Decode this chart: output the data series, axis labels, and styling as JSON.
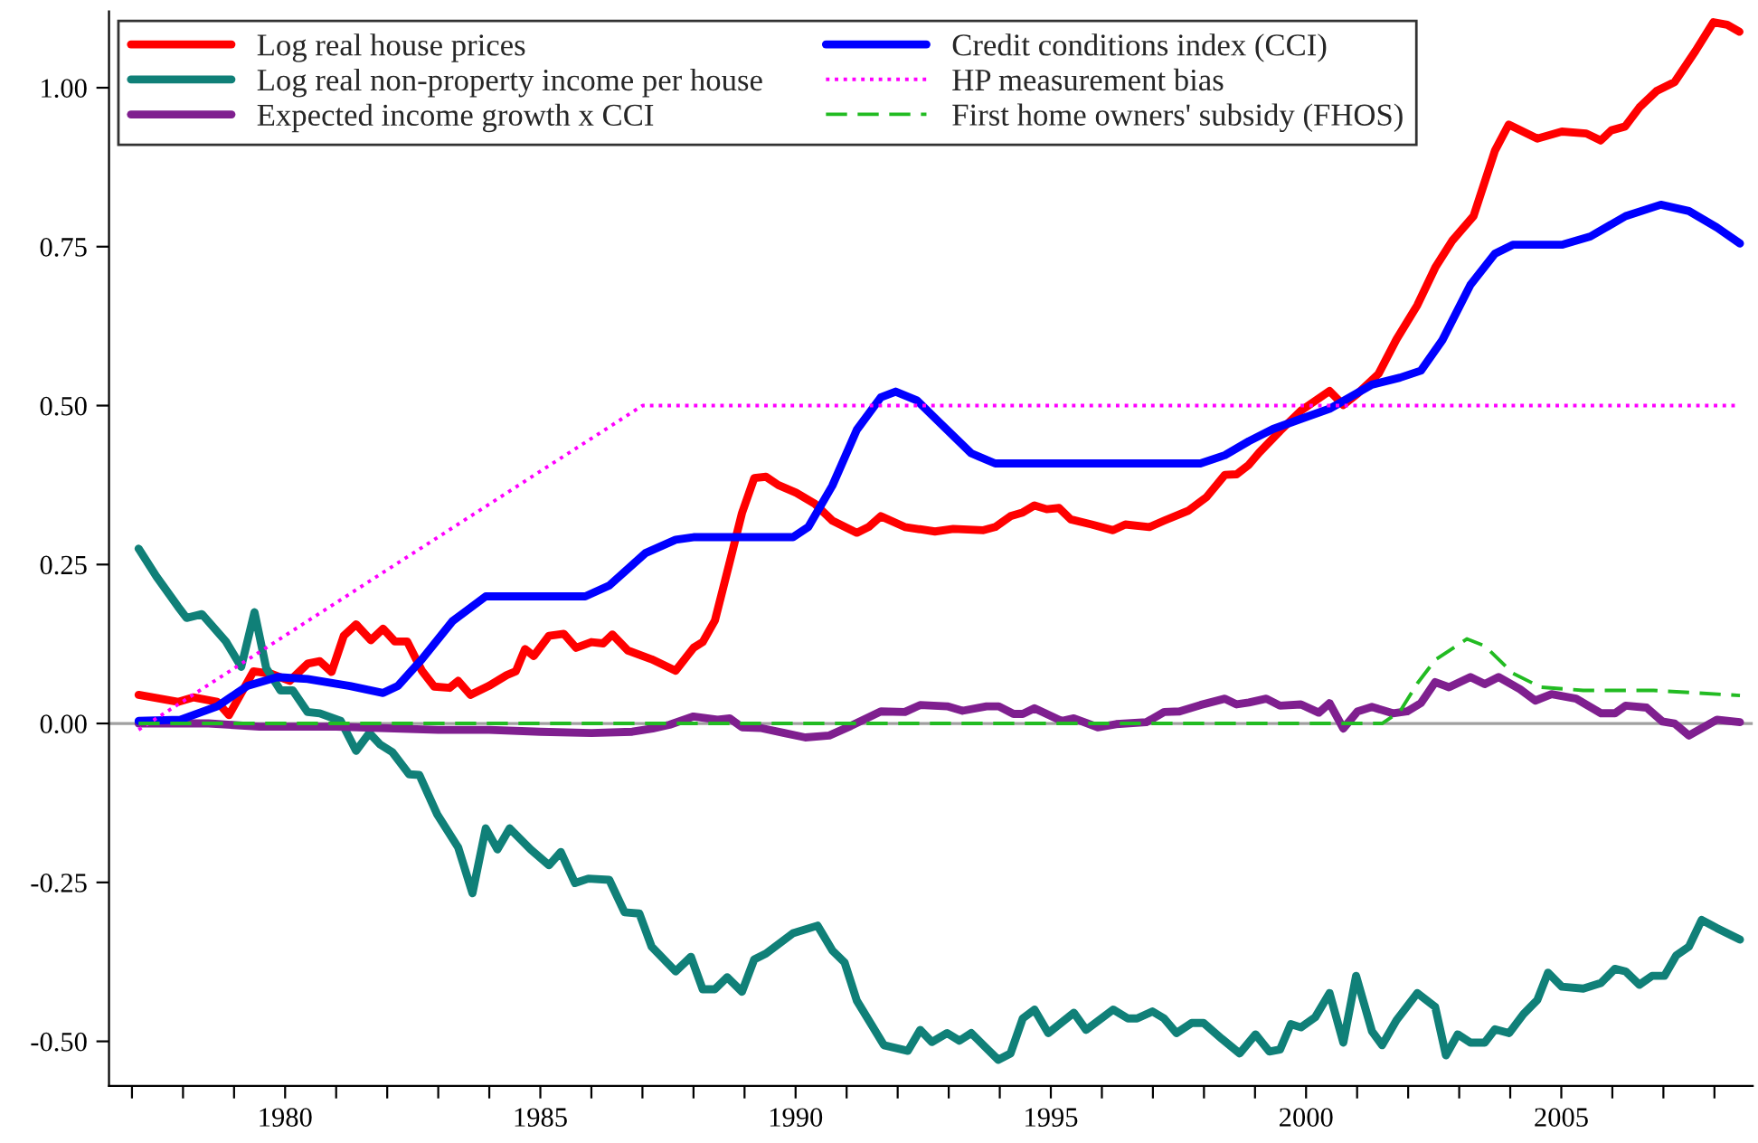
{
  "chart_data": {
    "type": "line",
    "legend": "top left",
    "grid": false,
    "marker": "none",
    "xlim": [
      1976.55,
      2008.75
    ],
    "ylim": [
      -0.57,
      1.12
    ],
    "xticks": [
      {
        "value": 1977,
        "label": null
      },
      {
        "value": 1978,
        "label": null
      },
      {
        "value": 1979,
        "label": null
      },
      1980,
      {
        "value": 1981,
        "label": null
      },
      {
        "value": 1982,
        "label": null
      },
      {
        "value": 1983,
        "label": null
      },
      {
        "value": 1984,
        "label": null
      },
      1985,
      {
        "value": 1986,
        "label": null
      },
      {
        "value": 1987,
        "label": null
      },
      {
        "value": 1988,
        "label": null
      },
      {
        "value": 1989,
        "label": null
      },
      1990,
      {
        "value": 1991,
        "label": null
      },
      {
        "value": 1992,
        "label": null
      },
      {
        "value": 1993,
        "label": null
      },
      {
        "value": 1994,
        "label": null
      },
      1995,
      {
        "value": 1996,
        "label": null
      },
      {
        "value": 1997,
        "label": null
      },
      {
        "value": 1998,
        "label": null
      },
      {
        "value": 1999,
        "label": null
      },
      2000,
      {
        "value": 2001,
        "label": null
      },
      {
        "value": 2002,
        "label": null
      },
      {
        "value": 2003,
        "label": null
      },
      {
        "value": 2004,
        "label": null
      },
      2005,
      {
        "value": 2006,
        "label": null
      },
      {
        "value": 2007,
        "label": null
      },
      {
        "value": 2008,
        "label": null
      }
    ],
    "yticks": [
      {
        "value": -0.5,
        "label": "-0.50"
      },
      {
        "value": -0.25,
        "label": "-0.25"
      },
      {
        "value": 0,
        "label": "0.00"
      },
      {
        "value": 0.25,
        "label": "0.25"
      },
      {
        "value": 0.5,
        "label": "0.50"
      },
      {
        "value": 0.75,
        "label": "0.75"
      },
      {
        "value": 1.0,
        "label": "1.00"
      }
    ],
    "ref_lines": [
      {
        "axis": "y",
        "value": 0,
        "label": null,
        "color": "#a0a0a0",
        "line_style": "solid"
      }
    ],
    "series": [
      {
        "name": "Log real house prices",
        "color": "#ff0000",
        "line_style": "solid",
        "x": [
          1977.13,
          1977.9,
          1978.2,
          1978.67,
          1978.9,
          1979.38,
          1979.73,
          1980.09,
          1980.44,
          1980.68,
          1980.91,
          1981.15,
          1981.39,
          1981.68,
          1981.92,
          1982.15,
          1982.39,
          1982.68,
          1982.92,
          1983.22,
          1983.39,
          1983.63,
          1983.99,
          1984.34,
          1984.52,
          1984.7,
          1984.87,
          1985.17,
          1985.46,
          1985.7,
          1986.0,
          1986.23,
          1986.41,
          1986.71,
          1987.18,
          1987.65,
          1988.0,
          1988.18,
          1988.42,
          1988.71,
          1988.95,
          1989.19,
          1989.42,
          1989.66,
          1990.01,
          1990.37,
          1990.72,
          1991.2,
          1991.43,
          1991.67,
          1992.14,
          1992.73,
          1993.09,
          1993.68,
          1993.91,
          1994.21,
          1994.45,
          1994.68,
          1994.92,
          1995.16,
          1995.39,
          1995.8,
          1996.22,
          1996.46,
          1996.93,
          1997.22,
          1997.7,
          1998.05,
          1998.41,
          1998.64,
          1998.88,
          1999.08,
          1999.49,
          1999.9,
          2000.46,
          2000.73,
          2001.01,
          2001.42,
          2001.77,
          2002.18,
          2002.53,
          2002.87,
          2003.28,
          2003.7,
          2003.97,
          2004.53,
          2005.01,
          2005.49,
          2005.77,
          2005.98,
          2006.25,
          2006.53,
          2006.87,
          2007.22,
          2007.63,
          2007.98,
          2008.25,
          2008.49
        ],
        "values": [
          0.045,
          0.034,
          0.041,
          0.034,
          0.013,
          0.082,
          0.078,
          0.067,
          0.094,
          0.098,
          0.081,
          0.138,
          0.156,
          0.131,
          0.149,
          0.129,
          0.129,
          0.083,
          0.058,
          0.056,
          0.067,
          0.045,
          0.059,
          0.076,
          0.082,
          0.117,
          0.106,
          0.138,
          0.141,
          0.119,
          0.128,
          0.126,
          0.14,
          0.115,
          0.101,
          0.083,
          0.119,
          0.128,
          0.162,
          0.254,
          0.331,
          0.386,
          0.388,
          0.375,
          0.363,
          0.346,
          0.319,
          0.3,
          0.309,
          0.326,
          0.309,
          0.302,
          0.306,
          0.304,
          0.309,
          0.326,
          0.332,
          0.343,
          0.337,
          0.339,
          0.321,
          0.313,
          0.304,
          0.313,
          0.309,
          0.319,
          0.335,
          0.356,
          0.391,
          0.392,
          0.407,
          0.426,
          0.46,
          0.492,
          0.523,
          0.501,
          0.519,
          0.55,
          0.604,
          0.658,
          0.717,
          0.76,
          0.798,
          0.901,
          0.942,
          0.92,
          0.931,
          0.928,
          0.917,
          0.933,
          0.939,
          0.969,
          0.995,
          1.009,
          1.058,
          1.103,
          1.099,
          1.088
        ]
      },
      {
        "name": "Log real non-property income per house",
        "color": "#108078",
        "line_style": "solid",
        "x": [
          1977.13,
          1977.48,
          1977.9,
          1978.07,
          1978.37,
          1978.84,
          1979.14,
          1979.4,
          1979.63,
          1979.91,
          1980.15,
          1980.44,
          1980.68,
          1981.09,
          1981.39,
          1981.65,
          1981.86,
          1982.1,
          1982.43,
          1982.63,
          1982.98,
          1983.39,
          1983.67,
          1983.93,
          1984.16,
          1984.4,
          1984.81,
          1985.17,
          1985.4,
          1985.68,
          1985.94,
          1986.35,
          1986.65,
          1986.94,
          1987.18,
          1987.65,
          1987.95,
          1988.18,
          1988.42,
          1988.66,
          1988.95,
          1989.19,
          1989.42,
          1989.95,
          1990.43,
          1990.72,
          1990.96,
          1991.2,
          1991.73,
          1992.2,
          1992.44,
          1992.67,
          1992.97,
          1993.21,
          1993.44,
          1993.68,
          1993.97,
          1994.21,
          1994.45,
          1994.68,
          1994.95,
          1995.45,
          1995.69,
          1996.22,
          1996.51,
          1996.69,
          1996.99,
          1997.22,
          1997.46,
          1997.76,
          1997.99,
          1998.35,
          1998.7,
          1999.01,
          1999.28,
          1999.49,
          1999.7,
          1999.9,
          2000.18,
          2000.46,
          2000.73,
          2000.98,
          2001.29,
          2001.49,
          2001.77,
          2002.18,
          2002.53,
          2002.74,
          2002.97,
          2003.22,
          2003.5,
          2003.7,
          2003.98,
          2004.26,
          2004.53,
          2004.74,
          2005.01,
          2005.43,
          2005.78,
          2006.05,
          2006.26,
          2006.53,
          2006.78,
          2007.02,
          2007.25,
          2007.5,
          2007.75,
          2008.05,
          2008.5
        ],
        "values": [
          0.275,
          0.231,
          0.184,
          0.166,
          0.172,
          0.129,
          0.089,
          0.175,
          0.087,
          0.052,
          0.052,
          0.018,
          0.016,
          0.004,
          -0.043,
          -0.015,
          -0.033,
          -0.045,
          -0.08,
          -0.081,
          -0.143,
          -0.195,
          -0.267,
          -0.165,
          -0.198,
          -0.165,
          -0.198,
          -0.223,
          -0.202,
          -0.251,
          -0.244,
          -0.246,
          -0.297,
          -0.299,
          -0.351,
          -0.39,
          -0.367,
          -0.418,
          -0.418,
          -0.399,
          -0.422,
          -0.371,
          -0.362,
          -0.33,
          -0.318,
          -0.357,
          -0.376,
          -0.436,
          -0.506,
          -0.515,
          -0.482,
          -0.501,
          -0.487,
          -0.499,
          -0.487,
          -0.506,
          -0.529,
          -0.519,
          -0.464,
          -0.45,
          -0.487,
          -0.455,
          -0.482,
          -0.45,
          -0.464,
          -0.464,
          -0.453,
          -0.464,
          -0.487,
          -0.471,
          -0.471,
          -0.496,
          -0.519,
          -0.489,
          -0.516,
          -0.513,
          -0.473,
          -0.478,
          -0.462,
          -0.424,
          -0.502,
          -0.397,
          -0.484,
          -0.506,
          -0.467,
          -0.424,
          -0.446,
          -0.522,
          -0.489,
          -0.502,
          -0.502,
          -0.481,
          -0.487,
          -0.457,
          -0.435,
          -0.392,
          -0.414,
          -0.417,
          -0.408,
          -0.386,
          -0.39,
          -0.411,
          -0.397,
          -0.397,
          -0.365,
          -0.351,
          -0.309,
          -0.322,
          -0.34
        ]
      },
      {
        "name": "Expected income growth x CCI",
        "color": "#7f1f8f",
        "line_style": "solid",
        "x": [
          1977.13,
          1978.5,
          1979.5,
          1981.0,
          1983.0,
          1984.0,
          1985.0,
          1986.0,
          1986.8,
          1987.2,
          1987.53,
          1988.0,
          1988.47,
          1988.71,
          1988.95,
          1989.31,
          1989.78,
          1990.19,
          1990.66,
          1991.08,
          1991.67,
          1992.14,
          1992.44,
          1992.97,
          1993.27,
          1993.74,
          1993.98,
          1994.27,
          1994.45,
          1994.68,
          1995.21,
          1995.45,
          1995.92,
          1996.28,
          1996.87,
          1997.22,
          1997.52,
          1997.93,
          1998.41,
          1998.64,
          1998.88,
          1999.22,
          1999.49,
          1999.9,
          2000.25,
          2000.46,
          2000.73,
          2001.01,
          2001.29,
          2001.7,
          2001.98,
          2002.25,
          2002.53,
          2002.8,
          2003.22,
          2003.5,
          2003.77,
          2004.19,
          2004.49,
          2004.81,
          2005.29,
          2005.78,
          2006.05,
          2006.26,
          2006.67,
          2006.98,
          2007.22,
          2007.5,
          2008.05,
          2008.5
        ],
        "values": [
          0.0,
          0.0,
          -0.005,
          -0.005,
          -0.01,
          -0.01,
          -0.013,
          -0.015,
          -0.013,
          -0.008,
          -0.002,
          0.011,
          0.006,
          0.008,
          -0.006,
          -0.007,
          -0.015,
          -0.022,
          -0.019,
          -0.004,
          0.019,
          0.018,
          0.029,
          0.027,
          0.02,
          0.027,
          0.027,
          0.015,
          0.015,
          0.024,
          0.004,
          0.008,
          -0.006,
          -0.001,
          0.002,
          0.018,
          0.019,
          0.029,
          0.039,
          0.03,
          0.033,
          0.039,
          0.028,
          0.03,
          0.017,
          0.032,
          -0.008,
          0.019,
          0.026,
          0.016,
          0.019,
          0.032,
          0.065,
          0.057,
          0.073,
          0.062,
          0.073,
          0.054,
          0.036,
          0.046,
          0.039,
          0.016,
          0.016,
          0.028,
          0.025,
          0.003,
          0.0,
          -0.019,
          0.006,
          0.002
        ]
      },
      {
        "name": "Credit conditions index (CCI)",
        "color": "#0000ff",
        "line_style": "solid",
        "x": [
          1977.13,
          1977.95,
          1978.67,
          1979.26,
          1979.85,
          1980.44,
          1981.27,
          1981.92,
          1982.21,
          1982.68,
          1983.28,
          1983.93,
          1985.88,
          1986.35,
          1987.06,
          1987.65,
          1988.0,
          1989.95,
          1990.25,
          1990.72,
          1991.2,
          1991.67,
          1991.96,
          1992.38,
          1992.85,
          1993.44,
          1993.91,
          1997.93,
          1998.41,
          1998.88,
          1999.35,
          1999.9,
          2000.46,
          2001.29,
          2001.84,
          2002.25,
          2002.67,
          2003.22,
          2003.7,
          2004.05,
          2005.01,
          2005.57,
          2006.26,
          2006.95,
          2007.5,
          2008.05,
          2008.5
        ],
        "values": [
          0.004,
          0.006,
          0.027,
          0.059,
          0.073,
          0.07,
          0.059,
          0.048,
          0.059,
          0.101,
          0.161,
          0.2,
          0.2,
          0.217,
          0.268,
          0.289,
          0.293,
          0.293,
          0.309,
          0.374,
          0.462,
          0.513,
          0.522,
          0.508,
          0.471,
          0.425,
          0.409,
          0.409,
          0.422,
          0.444,
          0.463,
          0.479,
          0.495,
          0.533,
          0.544,
          0.555,
          0.603,
          0.69,
          0.739,
          0.753,
          0.753,
          0.766,
          0.798,
          0.816,
          0.806,
          0.78,
          0.755
        ]
      },
      {
        "name": "HP measurement bias",
        "color": "#ff00ff",
        "line_style": "dotted",
        "x": [
          1977.13,
          1987.0,
          2008.5
        ],
        "values": [
          -0.01,
          0.5,
          0.5
        ]
      },
      {
        "name": "First home owners' subsidy (FHOS)",
        "color": "#22bb22",
        "line_style": "dashed",
        "x": [
          1977.13,
          2001.49,
          2001.84,
          2002.18,
          2002.53,
          2003.15,
          2003.5,
          2004.05,
          2004.6,
          2005.43,
          2006.81,
          2008.5
        ],
        "values": [
          0.0,
          0.0,
          0.019,
          0.063,
          0.1,
          0.133,
          0.122,
          0.079,
          0.057,
          0.052,
          0.052,
          0.044
        ]
      }
    ]
  }
}
